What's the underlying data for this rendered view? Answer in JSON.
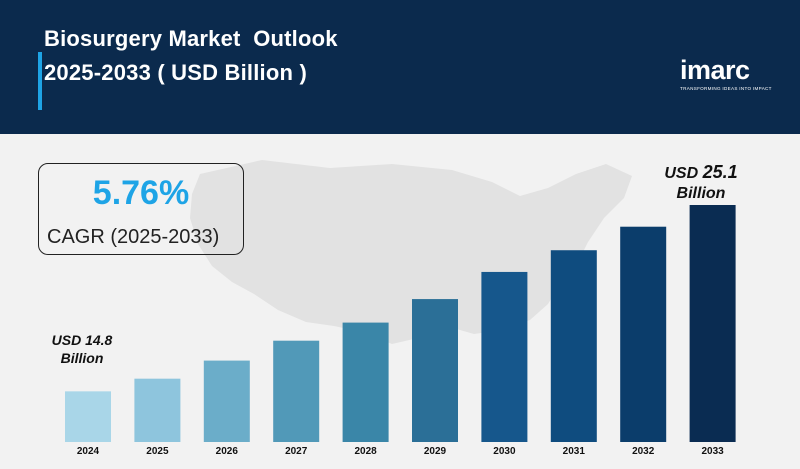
{
  "header": {
    "title_line1": "Biosurgery Market  Outlook",
    "title_line2": "2025-2033 ( USD Billion )"
  },
  "logo": {
    "word": "imarc",
    "tagline": "TRANSFORMING IDEAS INTO IMPACT"
  },
  "cagr": {
    "value": "5.76%",
    "label": "CAGR (2025-2033)"
  },
  "callouts": {
    "start_line1": "USD 14.8",
    "start_line2": "Billion",
    "end_prefix": "USD",
    "end_value": "25.1",
    "end_line2": "Billion"
  },
  "colors": {
    "header_bg": "#0b2a4d",
    "accent": "#1ea4e6",
    "bar_colors": [
      "#a9d6e8",
      "#8ec5dd",
      "#6badc9",
      "#5199b8",
      "#3a86a8",
      "#2b6f97",
      "#16578c",
      "#0f4c7f",
      "#0b3d6b",
      "#0a2c52"
    ]
  },
  "chart_data": {
    "type": "bar",
    "title": "Biosurgery Market  Outlook 2025-2033 ( USD Billion )",
    "categories": [
      "2024",
      "2025",
      "2026",
      "2027",
      "2028",
      "2029",
      "2030",
      "2031",
      "2032",
      "2033"
    ],
    "values": [
      14.8,
      15.5,
      16.5,
      17.6,
      18.6,
      19.9,
      21.4,
      22.6,
      23.9,
      25.1
    ],
    "xlabel": "",
    "ylabel": "",
    "ylim": [
      12.0,
      25.1
    ],
    "grid": false,
    "legend": "none"
  }
}
